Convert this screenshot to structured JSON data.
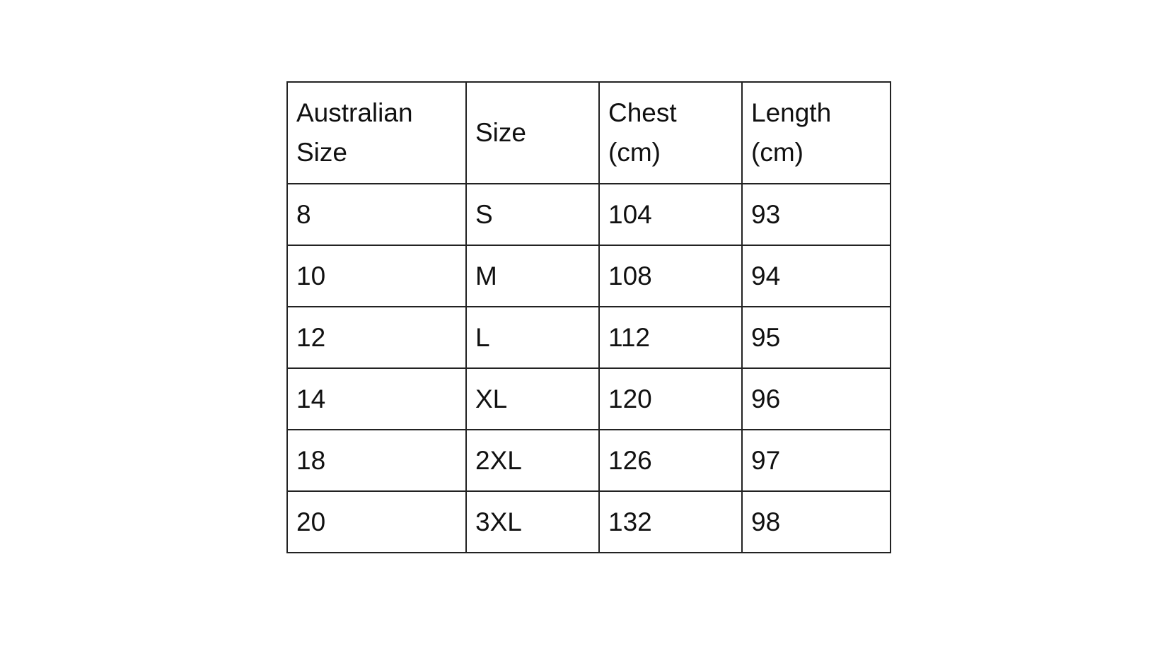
{
  "table": {
    "headers": [
      "Australian Size",
      "Size",
      "Chest (cm)",
      "Length (cm)"
    ],
    "rows": [
      [
        "8",
        "S",
        "104",
        "93"
      ],
      [
        "10",
        "M",
        "108",
        "94"
      ],
      [
        "12",
        "L",
        "112",
        "95"
      ],
      [
        "14",
        "XL",
        "120",
        "96"
      ],
      [
        "18",
        "2XL",
        "126",
        "97"
      ],
      [
        "20",
        "3XL",
        "132",
        "98"
      ]
    ]
  }
}
